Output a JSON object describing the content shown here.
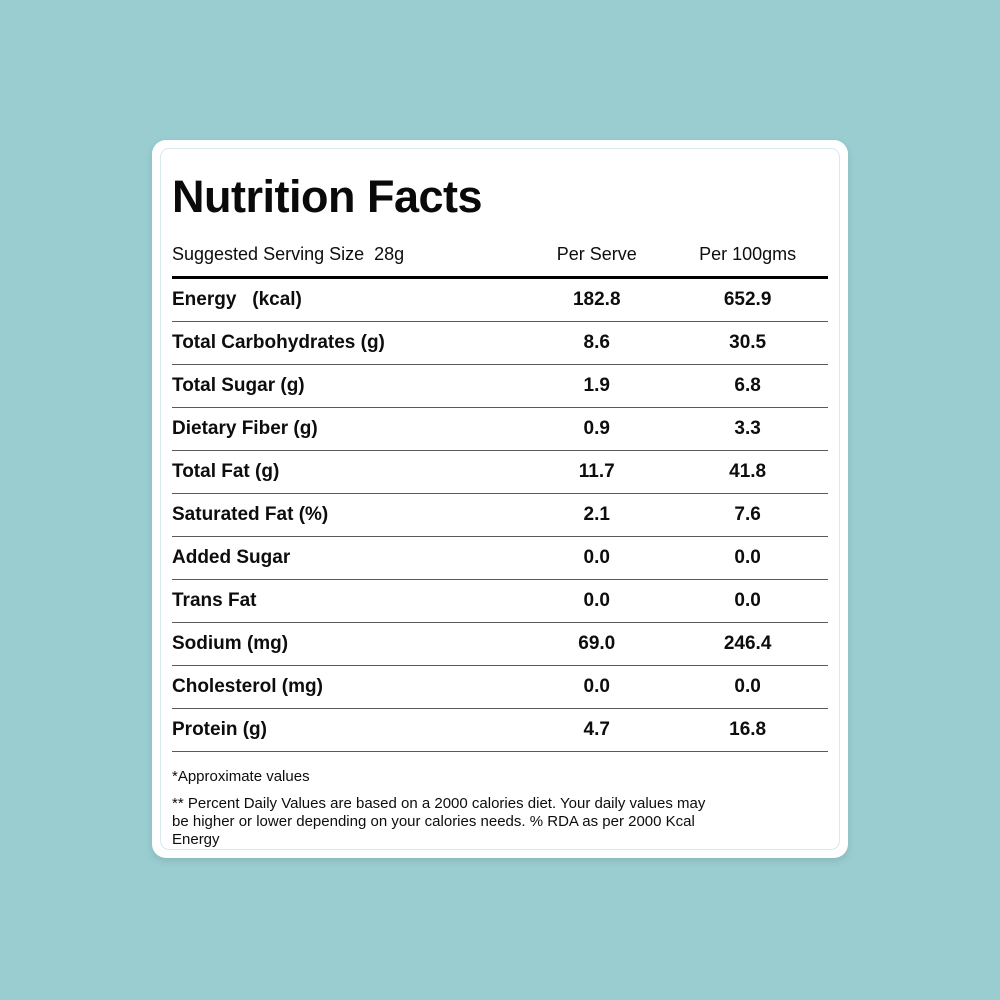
{
  "colors": {
    "background": "#99cdd0",
    "card_background": "#ffffff",
    "inner_border": "#d9eaec",
    "text": "#0d0d0d",
    "thick_rule": "#000000",
    "thin_rule": "#5a5a5a"
  },
  "card": {
    "title": "Nutrition Facts",
    "serving_line": "Suggested Serving Size  28g",
    "columns": {
      "per_serve": "Per Serve",
      "per_100": "Per 100gms"
    },
    "rows": [
      {
        "name": "Energy   (kcal)",
        "per_serve": "182.8",
        "per_100": "652.9"
      },
      {
        "name": "Total Carbohydrates (g)",
        "per_serve": "8.6",
        "per_100": "30.5"
      },
      {
        "name": "Total Sugar (g)",
        "per_serve": "1.9",
        "per_100": "6.8"
      },
      {
        "name": "Dietary Fiber (g)",
        "per_serve": "0.9",
        "per_100": "3.3"
      },
      {
        "name": "Total Fat (g)",
        "per_serve": "11.7",
        "per_100": "41.8"
      },
      {
        "name": "Saturated Fat (%)",
        "per_serve": "2.1",
        "per_100": "7.6"
      },
      {
        "name": "Added Sugar",
        "per_serve": "0.0",
        "per_100": "0.0"
      },
      {
        "name": "Trans Fat",
        "per_serve": "0.0",
        "per_100": "0.0"
      },
      {
        "name": "Sodium (mg)",
        "per_serve": "69.0",
        "per_100": "246.4"
      },
      {
        "name": "Cholesterol (mg)",
        "per_serve": "0.0",
        "per_100": "0.0"
      },
      {
        "name": "Protein (g)",
        "per_serve": "4.7",
        "per_100": "16.8"
      }
    ],
    "footnotes": {
      "approx": "*Approximate values",
      "daily": "** Percent Daily Values are based on a 2000 calories diet. Your daily values may be higher or lower depending on your calories needs. % RDA as per 2000 Kcal Energy"
    }
  }
}
